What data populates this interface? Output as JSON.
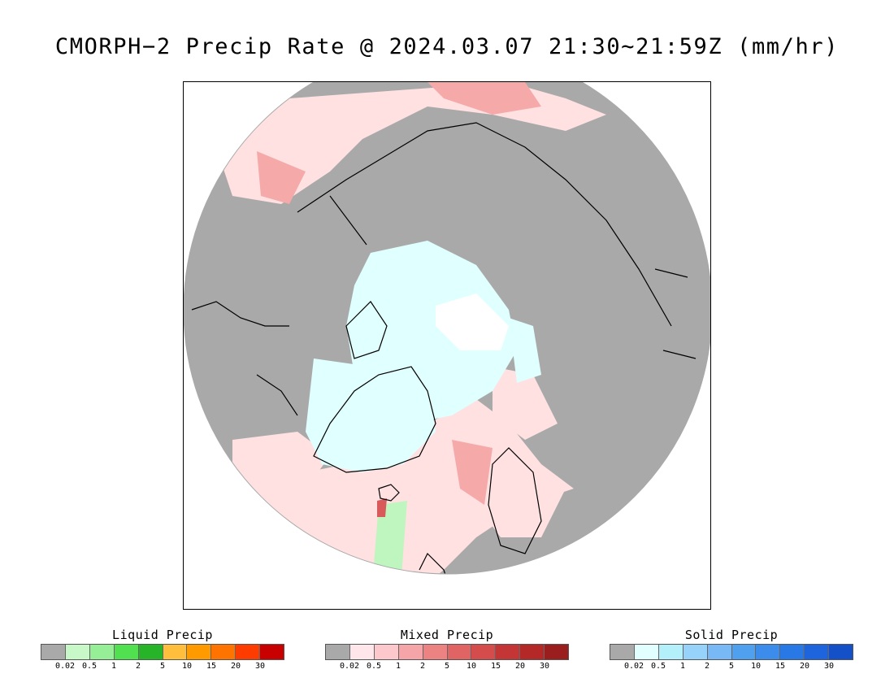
{
  "title": "CMORPH−2 Precip Rate @ 2024.03.07 21:30∼21:59Z (mm/hr)",
  "map": {
    "projection": "north-polar-stereographic",
    "colors": {
      "no_precip": "#a9a9a9",
      "outside": "#ffffff",
      "mixed_light": "#ffe1e1",
      "mixed_mid": "#f5a9a9",
      "mixed_dark": "#d85a5a",
      "solid_light": "#e0ffff",
      "liquid_light": "#bff5bf",
      "liquid_dark": "#3cc43c",
      "coast": "#000000"
    }
  },
  "legends": [
    {
      "title": "Liquid Precip",
      "colors": [
        "#a9a9a9",
        "#c8f7c8",
        "#96ef96",
        "#50e050",
        "#28b428",
        "#ffbe3c",
        "#ff9b00",
        "#ff7300",
        "#ff3c00",
        "#c80000"
      ],
      "ticks": [
        "0.02",
        "0.5",
        "1",
        "2",
        "5",
        "10",
        "15",
        "20",
        "30"
      ]
    },
    {
      "title": "Mixed Precip",
      "colors": [
        "#a9a9a9",
        "#ffe6ea",
        "#fcc8cc",
        "#f5a5a8",
        "#ec8282",
        "#e06464",
        "#d44c4c",
        "#c43636",
        "#b42828",
        "#9b1e1e"
      ],
      "ticks": [
        "0.02",
        "0.5",
        "1",
        "2",
        "5",
        "10",
        "15",
        "20",
        "30"
      ]
    },
    {
      "title": "Solid Precip",
      "colors": [
        "#a9a9a9",
        "#e1ffff",
        "#b4f0fa",
        "#96d2fa",
        "#78b9f5",
        "#50a0f0",
        "#3c8ceb",
        "#2878e6",
        "#1e64dc",
        "#1450c8"
      ],
      "ticks": [
        "0.02",
        "0.5",
        "1",
        "2",
        "5",
        "10",
        "15",
        "20",
        "30"
      ]
    }
  ]
}
